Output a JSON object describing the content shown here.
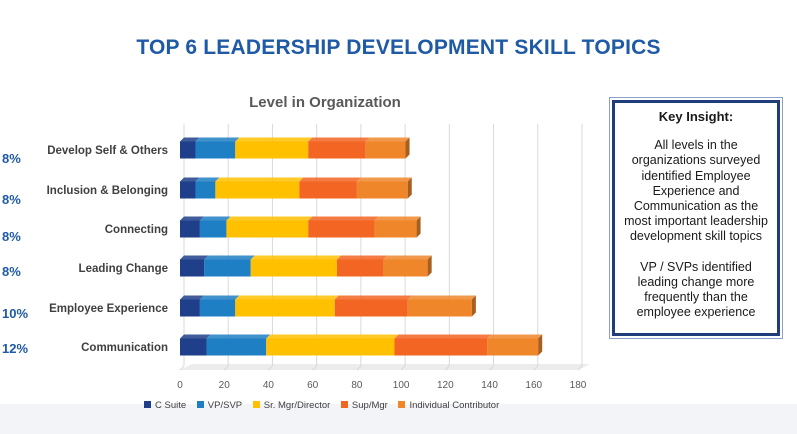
{
  "page": {
    "title": "TOP 6 LEADERSHIP DEVELOPMENT SKILL TOPICS"
  },
  "insight": {
    "heading": "Key Insight:",
    "paragraph1": "All levels in the organizations surveyed identified Employee Experience and Communication as the most important leadership development skill topics",
    "paragraph2": "VP / SVPs identified leading change more frequently than the employee experience"
  },
  "percentages": [
    "8%",
    "8%",
    "8%",
    "8%",
    "10%",
    "12%"
  ],
  "chart_data": {
    "type": "bar",
    "orientation": "horizontal",
    "stacked": true,
    "title": "Level in Organization",
    "categories": [
      "Develop Self & Others",
      "Inclusion & Belonging",
      "Connecting",
      "Leading Change",
      "Employee Experience",
      "Communication"
    ],
    "series": [
      {
        "name": "C  Suite",
        "color": "#1f3f8a",
        "values": [
          7,
          7,
          9,
          11,
          9,
          12
        ]
      },
      {
        "name": "VP/SVP",
        "color": "#1f7fc4",
        "values": [
          18,
          9,
          12,
          21,
          16,
          27
        ]
      },
      {
        "name": "Sr. Mgr/Director",
        "color": "#ffc000",
        "values": [
          33,
          38,
          37,
          39,
          45,
          58
        ]
      },
      {
        "name": "Sup/Mgr",
        "color": "#f26522",
        "values": [
          26,
          26,
          30,
          21,
          33,
          42
        ]
      },
      {
        "name": "Individual Contributor",
        "color": "#f0862a",
        "values": [
          18,
          23,
          19,
          20,
          29,
          23
        ]
      }
    ],
    "xlim": [
      0,
      180
    ],
    "xticks": [
      0,
      20,
      40,
      60,
      80,
      100,
      120,
      140,
      160,
      180
    ],
    "grid": true,
    "legend": "bottom"
  }
}
